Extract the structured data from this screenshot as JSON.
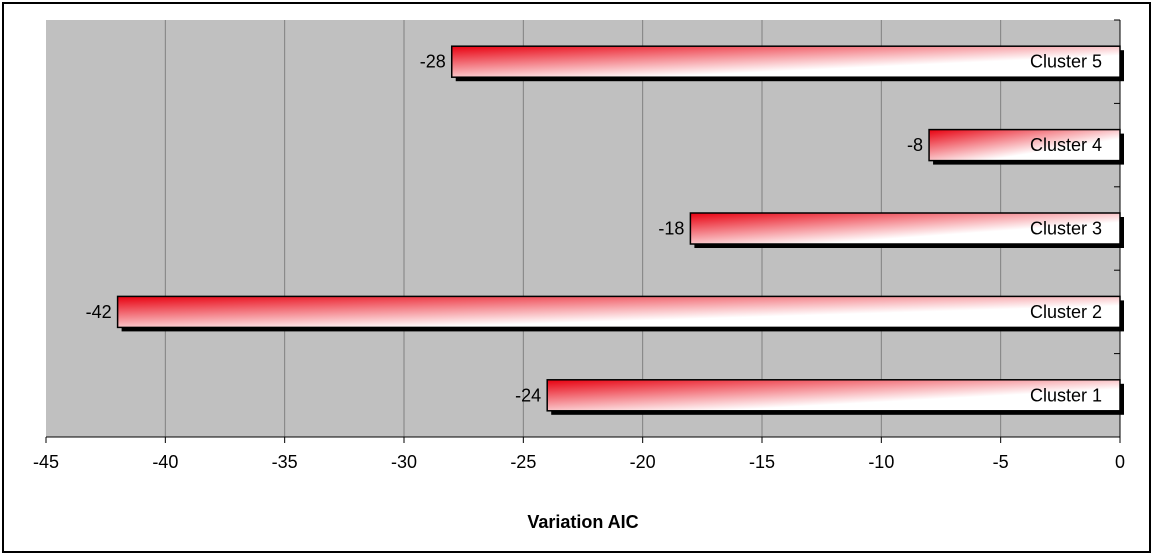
{
  "chart_data": {
    "type": "bar",
    "orientation": "horizontal",
    "categories": [
      "Cluster 1",
      "Cluster 2",
      "Cluster 3",
      "Cluster 4",
      "Cluster 5"
    ],
    "values": [
      -24,
      -42,
      -18,
      -8,
      -28
    ],
    "data_labels": [
      "-24",
      "-42",
      "-18",
      "-8",
      "-28"
    ],
    "title": "",
    "xlabel": "Variation AIC",
    "ylabel": "",
    "xlim": [
      -45,
      0
    ],
    "xticks": [
      -45,
      -40,
      -35,
      -30,
      -25,
      -20,
      -15,
      -10,
      -5,
      0
    ],
    "xtick_labels": [
      "-45",
      "-40",
      "-35",
      "-30",
      "-25",
      "-20",
      "-15",
      "-10",
      "-5",
      "0"
    ],
    "grid": "vertical",
    "legend": "none",
    "colors": {
      "plot_background": "#c0c0c0",
      "bar_fill_start": "#e8000f",
      "bar_fill_end": "#ffffff",
      "bar_shadow": "#000000",
      "gridline": "#808080"
    }
  }
}
